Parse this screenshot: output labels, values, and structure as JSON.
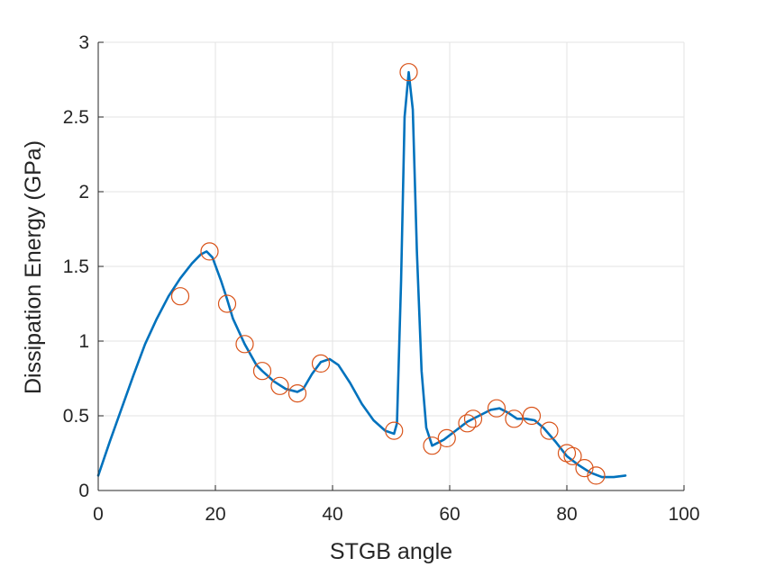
{
  "chart_data": {
    "type": "line",
    "title": "",
    "xlabel": "STGB angle",
    "ylabel": "Dissipation Energy (GPa)",
    "xlim": [
      0,
      100
    ],
    "ylim": [
      0,
      3
    ],
    "xticks": [
      0,
      20,
      40,
      60,
      80,
      100
    ],
    "yticks": [
      0,
      0.5,
      1,
      1.5,
      2,
      2.5,
      3
    ],
    "xtick_labels": [
      "0",
      "20",
      "40",
      "60",
      "80",
      "100"
    ],
    "ytick_labels": [
      "0",
      "0.5",
      "1",
      "1.5",
      "2",
      "2.5",
      "3"
    ],
    "grid": true,
    "series": [
      {
        "type": "line",
        "color": "#0072BD",
        "x": [
          0,
          2,
          4,
          6,
          8,
          10,
          12,
          14,
          16,
          17.5,
          18.5,
          19.5,
          21,
          22,
          23,
          25,
          27,
          28,
          30,
          32,
          34,
          35,
          36.5,
          38,
          39.5,
          41,
          43,
          45,
          47,
          49,
          50.5,
          51,
          51.7,
          52.3,
          53,
          53.7,
          54.4,
          55.2,
          56,
          57,
          59,
          61,
          63,
          65,
          67,
          68.5,
          70,
          71.5,
          73,
          74.5,
          76,
          78,
          80,
          82,
          84,
          86,
          88,
          90
        ],
        "y": [
          0.1,
          0.33,
          0.55,
          0.77,
          0.98,
          1.15,
          1.3,
          1.42,
          1.52,
          1.58,
          1.6,
          1.56,
          1.4,
          1.28,
          1.15,
          0.98,
          0.84,
          0.8,
          0.73,
          0.68,
          0.66,
          0.68,
          0.78,
          0.86,
          0.88,
          0.84,
          0.72,
          0.58,
          0.47,
          0.4,
          0.38,
          0.45,
          1.4,
          2.5,
          2.8,
          2.55,
          1.6,
          0.8,
          0.42,
          0.3,
          0.34,
          0.4,
          0.46,
          0.5,
          0.54,
          0.55,
          0.52,
          0.48,
          0.48,
          0.47,
          0.42,
          0.33,
          0.23,
          0.17,
          0.12,
          0.09,
          0.09,
          0.1
        ]
      },
      {
        "type": "scatter",
        "marker": "circle",
        "color": "#D95319",
        "x": [
          14,
          19,
          22,
          25,
          28,
          31,
          34,
          38,
          50.5,
          53,
          57,
          59.5,
          63,
          64,
          68,
          71,
          74,
          77,
          80,
          81,
          83,
          85
        ],
        "y": [
          1.3,
          1.6,
          1.25,
          0.98,
          0.8,
          0.7,
          0.65,
          0.85,
          0.4,
          2.8,
          0.3,
          0.35,
          0.45,
          0.48,
          0.55,
          0.48,
          0.5,
          0.4,
          0.25,
          0.23,
          0.15,
          0.1
        ]
      }
    ]
  }
}
